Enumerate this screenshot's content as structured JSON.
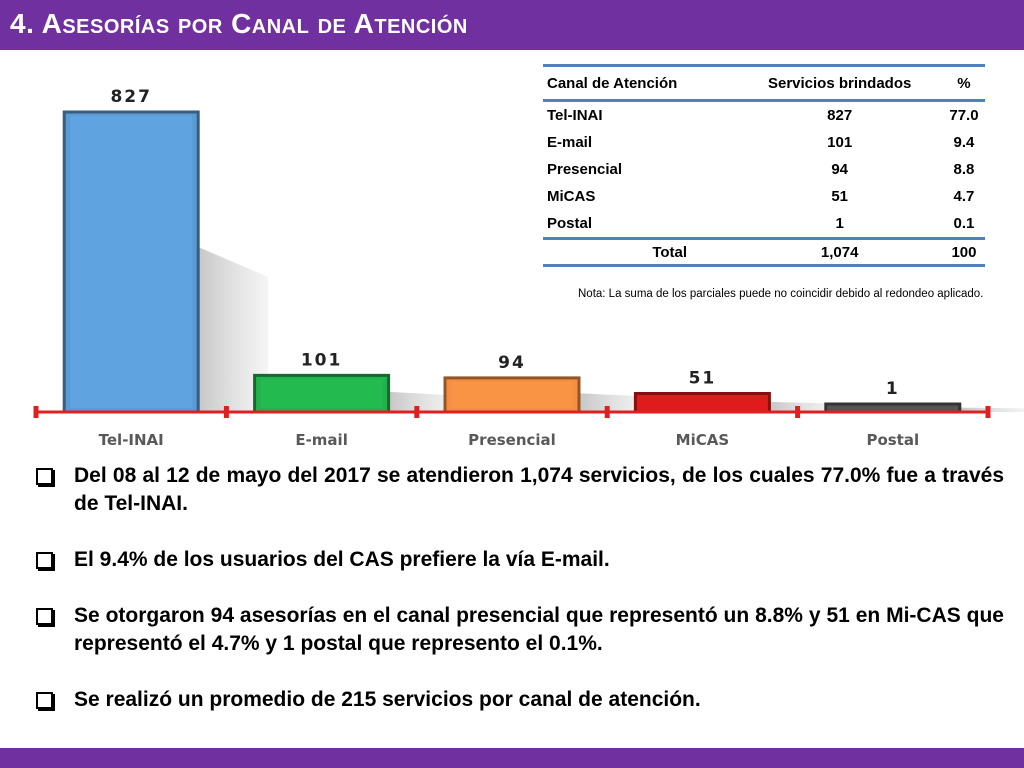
{
  "title": "4. Asesorías por Canal de Atención",
  "colors": {
    "title_bar": "#7030a0",
    "axis": "#e02020",
    "bars": [
      "#5b9bd5",
      "#22b14c",
      "#f58d42",
      "#e01b1b",
      "#555555"
    ]
  },
  "chart_data": {
    "type": "bar",
    "categories": [
      "Tel-INAI",
      "E-mail",
      "Presencial",
      "MiCAS",
      "Postal"
    ],
    "values": [
      827,
      101,
      94,
      51,
      1
    ],
    "data_labels": [
      "827",
      "101",
      "94",
      "51",
      "1"
    ],
    "title": "",
    "xlabel": "",
    "ylabel": "",
    "ylim": [
      0,
      827
    ],
    "grid": false,
    "legend": "none"
  },
  "table": {
    "headers": [
      "Canal de Atención",
      "Servicios brindados",
      "%"
    ],
    "rows": [
      [
        "Tel-INAI",
        "827",
        "77.0"
      ],
      [
        "E-mail",
        "101",
        "9.4"
      ],
      [
        "Presencial",
        "94",
        "8.8"
      ],
      [
        "MiCAS",
        "51",
        "4.7"
      ],
      [
        "Postal",
        "1",
        "0.1"
      ]
    ],
    "total": [
      "Total",
      "1,074",
      "100"
    ]
  },
  "note": "Nota: La suma de los parciales puede no coincidir debido al redondeo aplicado.",
  "bullets": [
    "Del 08 al 12 de mayo del 2017 se atendieron 1,074 servicios, de los cuales 77.0% fue a través de Tel-INAI.",
    "El 9.4% de los usuarios del CAS prefiere la vía E-mail.",
    "Se otorgaron 94 asesorías en el canal presencial que representó un 8.8% y 51 en Mi-CAS que representó el 4.7% y 1 postal que represento el 0.1%.",
    "Se realizó un promedio de 215 servicios por canal de atención."
  ]
}
